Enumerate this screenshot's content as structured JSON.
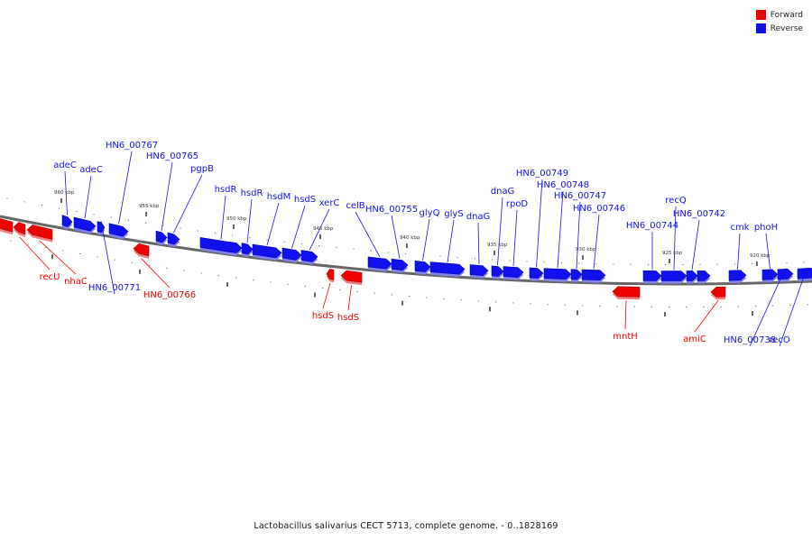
{
  "colors": {
    "forward": "#ee0000",
    "reverse": "#1111ee",
    "backbone": "#666666"
  },
  "legend": {
    "forward_label": "Forward",
    "reverse_label": "Reverse"
  },
  "caption": "Lactobacillus salivarius CECT 5713, complete genome. - 0..1828169",
  "scale_labels": [
    "960 kbp",
    "955 kbp",
    "950 kbp",
    "945 kbp",
    "940 kbp",
    "935 kbp",
    "930 kbp",
    "925 kbp",
    "920 kbp"
  ],
  "gene_labels": [
    "adeC",
    "adeC",
    "HN6_00767",
    "HN6_00765",
    "pgpB",
    "hsdR",
    "hsdR",
    "hsdM",
    "hsdS",
    "xerC",
    "celB",
    "HN6_00755",
    "glyQ",
    "glyS",
    "dnaG",
    "dnaG",
    "rpoD",
    "HN6_00749",
    "HN6_00748",
    "HN6_00747",
    "HN6_00746",
    "HN6_00744",
    "recQ",
    "HN6_00742",
    "cmk",
    "phoH",
    "recU",
    "nhaC",
    "HN6_00771",
    "HN6_00766",
    "hsdS",
    "hsdS",
    "mntH",
    "amiC",
    "HN6_00738",
    "recO"
  ]
}
